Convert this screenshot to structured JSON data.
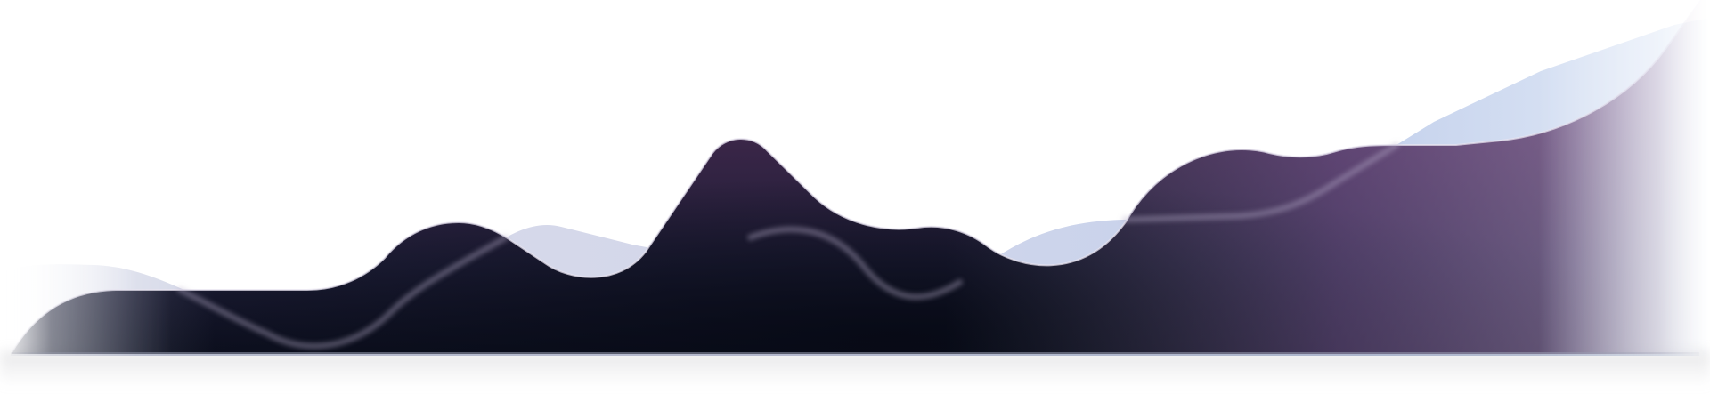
{
  "colors": {
    "background": "#ffffff",
    "back_layer_light": "#c3cfeb",
    "back_layer_lavender": "#d2d6ea",
    "front_top_plum": "#5a2a5e",
    "front_mid_navy": "#2a2748",
    "front_bottom_ink": "#0d1020",
    "front_right_violet": "#7a5a92",
    "front_left_slate": "#5a5668",
    "edge_highlight": "#e6e2ee"
  },
  "layers": [
    {
      "name": "back-wave",
      "role": "light-lavender-blue background wave"
    },
    {
      "name": "front-wave",
      "role": "dark plum-to-navy foreground wave"
    },
    {
      "name": "ridge-line",
      "role": "translucent glowing ridge line"
    }
  ]
}
